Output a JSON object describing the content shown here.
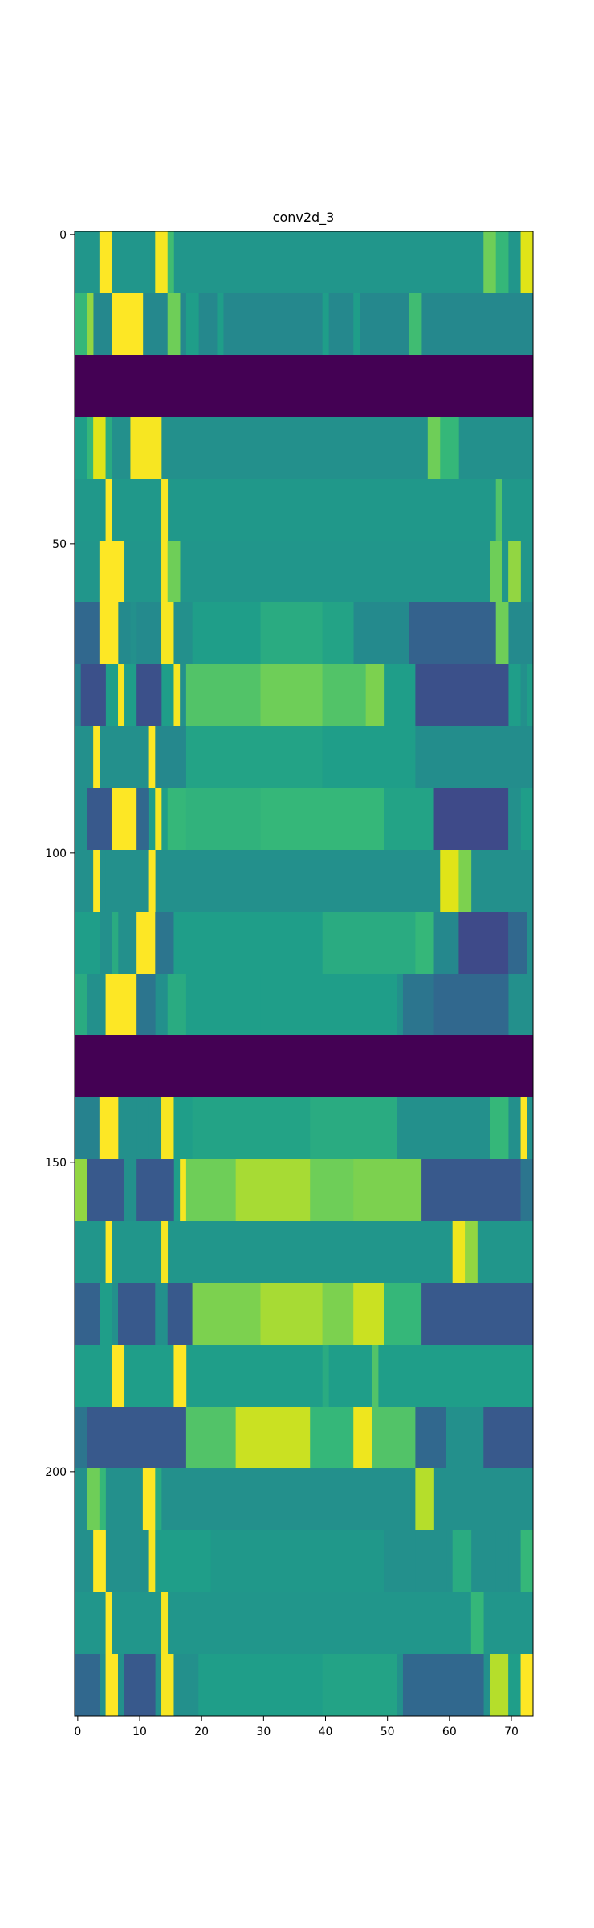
{
  "chart_data": {
    "type": "heatmap",
    "title": "conv2d_3",
    "xlabel": "",
    "ylabel": "",
    "colormap": "viridis",
    "xlim": [
      -0.5,
      73.5
    ],
    "ylim": [
      239.5,
      -0.5
    ],
    "x_ticks": [
      0,
      10,
      20,
      30,
      40,
      50,
      60,
      70
    ],
    "x_tick_labels": [
      "0",
      "10",
      "20",
      "30",
      "40",
      "50",
      "60",
      "70"
    ],
    "y_ticks": [
      0,
      50,
      100,
      150,
      200
    ],
    "y_tick_labels": [
      "0",
      "50",
      "100",
      "150",
      "200"
    ],
    "columns": 74,
    "rows": 240,
    "row_band_height": 10,
    "value_range": [
      0,
      1
    ],
    "bands": [
      {
        "rows": [
          0,
          9
        ],
        "base": 0.47,
        "segments": [
          [
            4,
            6,
            1.0
          ],
          [
            13,
            15,
            0.98
          ],
          [
            15,
            16,
            0.62
          ],
          [
            66,
            68,
            0.7
          ],
          [
            68,
            70,
            0.6
          ],
          [
            72,
            74,
            0.9
          ]
        ]
      },
      {
        "rows": [
          10,
          19
        ],
        "base": 0.42,
        "segments": [
          [
            0,
            2,
            0.6
          ],
          [
            2,
            3,
            0.75
          ],
          [
            6,
            11,
            1.0
          ],
          [
            15,
            17,
            0.7
          ],
          [
            18,
            20,
            0.5
          ],
          [
            23,
            24,
            0.5
          ],
          [
            40,
            41,
            0.5
          ],
          [
            45,
            46,
            0.5
          ],
          [
            54,
            56,
            0.62
          ]
        ]
      },
      {
        "rows": [
          20,
          29
        ],
        "base": 0.0,
        "segments": []
      },
      {
        "rows": [
          30,
          39
        ],
        "base": 0.45,
        "segments": [
          [
            0,
            2,
            0.5
          ],
          [
            2,
            3,
            0.6
          ],
          [
            3,
            5,
            0.9
          ],
          [
            5,
            6,
            0.55
          ],
          [
            9,
            11,
            0.98
          ],
          [
            11,
            14,
            0.98
          ],
          [
            57,
            59,
            0.7
          ],
          [
            59,
            62,
            0.6
          ]
        ]
      },
      {
        "rows": [
          40,
          49
        ],
        "base": 0.48,
        "segments": [
          [
            5,
            6,
            1.0
          ],
          [
            14,
            15,
            0.98
          ],
          [
            68,
            69,
            0.65
          ]
        ]
      },
      {
        "rows": [
          50,
          59
        ],
        "base": 0.47,
        "segments": [
          [
            4,
            8,
            1.0
          ],
          [
            14,
            15,
            0.98
          ],
          [
            15,
            17,
            0.7
          ],
          [
            67,
            69,
            0.7
          ],
          [
            70,
            72,
            0.75
          ]
        ]
      },
      {
        "rows": [
          60,
          69
        ],
        "base": 0.43,
        "segments": [
          [
            0,
            4,
            0.3
          ],
          [
            4,
            7,
            1.0
          ],
          [
            9,
            10,
            0.45
          ],
          [
            14,
            16,
            0.98
          ],
          [
            16,
            19,
            0.45
          ],
          [
            19,
            30,
            0.5
          ],
          [
            30,
            40,
            0.55
          ],
          [
            40,
            45,
            0.52
          ],
          [
            54,
            68,
            0.28
          ],
          [
            68,
            70,
            0.7
          ]
        ]
      },
      {
        "rows": [
          70,
          79
        ],
        "base": 0.5,
        "segments": [
          [
            0,
            1,
            0.4
          ],
          [
            1,
            5,
            0.22
          ],
          [
            7,
            8,
            0.98
          ],
          [
            10,
            14,
            0.22
          ],
          [
            16,
            17,
            0.98
          ],
          [
            17,
            18,
            0.45
          ],
          [
            18,
            30,
            0.65
          ],
          [
            30,
            40,
            0.7
          ],
          [
            40,
            47,
            0.65
          ],
          [
            47,
            50,
            0.72
          ],
          [
            55,
            70,
            0.22
          ],
          [
            72,
            73,
            0.45
          ]
        ]
      },
      {
        "rows": [
          80,
          89
        ],
        "base": 0.45,
        "segments": [
          [
            3,
            4,
            1.0
          ],
          [
            12,
            13,
            1.0
          ],
          [
            13,
            18,
            0.42
          ],
          [
            18,
            40,
            0.52
          ],
          [
            40,
            55,
            0.5
          ],
          [
            55,
            74,
            0.44
          ]
        ]
      },
      {
        "rows": [
          90,
          99
        ],
        "base": 0.5,
        "segments": [
          [
            0,
            2,
            0.45
          ],
          [
            2,
            6,
            0.25
          ],
          [
            6,
            10,
            1.0
          ],
          [
            10,
            12,
            0.3
          ],
          [
            13,
            14,
            0.98
          ],
          [
            15,
            18,
            0.6
          ],
          [
            18,
            30,
            0.58
          ],
          [
            30,
            50,
            0.6
          ],
          [
            50,
            58,
            0.52
          ],
          [
            58,
            70,
            0.2
          ],
          [
            70,
            72,
            0.45
          ]
        ]
      },
      {
        "rows": [
          100,
          109
        ],
        "base": 0.45,
        "segments": [
          [
            3,
            4,
            1.0
          ],
          [
            5,
            6,
            0.45
          ],
          [
            12,
            13,
            1.0
          ],
          [
            59,
            62,
            0.9
          ],
          [
            62,
            64,
            0.72
          ]
        ]
      },
      {
        "rows": [
          110,
          119
        ],
        "base": 0.45,
        "segments": [
          [
            0,
            4,
            0.5
          ],
          [
            6,
            7,
            0.55
          ],
          [
            10,
            13,
            1.0
          ],
          [
            13,
            16,
            0.35
          ],
          [
            16,
            40,
            0.5
          ],
          [
            40,
            55,
            0.55
          ],
          [
            55,
            58,
            0.6
          ],
          [
            58,
            62,
            0.42
          ],
          [
            62,
            70,
            0.2
          ],
          [
            70,
            73,
            0.3
          ]
        ]
      },
      {
        "rows": [
          120,
          129
        ],
        "base": 0.45,
        "segments": [
          [
            0,
            2,
            0.55
          ],
          [
            5,
            10,
            1.0
          ],
          [
            10,
            13,
            0.35
          ],
          [
            15,
            18,
            0.55
          ],
          [
            18,
            30,
            0.5
          ],
          [
            30,
            52,
            0.5
          ],
          [
            53,
            58,
            0.35
          ],
          [
            58,
            70,
            0.3
          ]
        ]
      },
      {
        "rows": [
          130,
          139
        ],
        "base": 0.0,
        "segments": []
      },
      {
        "rows": [
          140,
          149
        ],
        "base": 0.45,
        "segments": [
          [
            0,
            4,
            0.4
          ],
          [
            4,
            7,
            1.0
          ],
          [
            10,
            12,
            0.45
          ],
          [
            14,
            16,
            0.98
          ],
          [
            16,
            19,
            0.5
          ],
          [
            19,
            38,
            0.52
          ],
          [
            38,
            52,
            0.55
          ],
          [
            52,
            67,
            0.45
          ],
          [
            67,
            70,
            0.6
          ],
          [
            72,
            73,
            1.0
          ]
        ]
      },
      {
        "rows": [
          150,
          159
        ],
        "base": 0.5,
        "segments": [
          [
            0,
            2,
            0.75
          ],
          [
            2,
            8,
            0.25
          ],
          [
            8,
            10,
            0.45
          ],
          [
            10,
            16,
            0.25
          ],
          [
            17,
            18,
            0.98
          ],
          [
            18,
            26,
            0.7
          ],
          [
            26,
            38,
            0.78
          ],
          [
            38,
            45,
            0.7
          ],
          [
            45,
            56,
            0.72
          ],
          [
            56,
            72,
            0.25
          ],
          [
            72,
            74,
            0.35
          ]
        ]
      },
      {
        "rows": [
          160,
          169
        ],
        "base": 0.47,
        "segments": [
          [
            5,
            6,
            1.0
          ],
          [
            14,
            15,
            0.98
          ],
          [
            61,
            63,
            0.95
          ],
          [
            63,
            65,
            0.75
          ]
        ]
      },
      {
        "rows": [
          170,
          179
        ],
        "base": 0.5,
        "segments": [
          [
            0,
            4,
            0.28
          ],
          [
            6,
            7,
            0.45
          ],
          [
            7,
            13,
            0.25
          ],
          [
            13,
            15,
            0.45
          ],
          [
            15,
            19,
            0.25
          ],
          [
            19,
            30,
            0.72
          ],
          [
            30,
            40,
            0.78
          ],
          [
            40,
            45,
            0.72
          ],
          [
            45,
            50,
            0.85
          ],
          [
            50,
            56,
            0.6
          ],
          [
            56,
            74,
            0.25
          ]
        ]
      },
      {
        "rows": [
          180,
          189
        ],
        "base": 0.5,
        "segments": [
          [
            6,
            8,
            1.0
          ],
          [
            16,
            18,
            1.0
          ],
          [
            40,
            41,
            0.55
          ],
          [
            48,
            49,
            0.65
          ]
        ]
      },
      {
        "rows": [
          190,
          199
        ],
        "base": 0.5,
        "segments": [
          [
            0,
            2,
            0.35
          ],
          [
            2,
            18,
            0.25
          ],
          [
            18,
            26,
            0.65
          ],
          [
            26,
            38,
            0.85
          ],
          [
            38,
            45,
            0.6
          ],
          [
            45,
            48,
            0.95
          ],
          [
            48,
            55,
            0.65
          ],
          [
            55,
            60,
            0.3
          ],
          [
            60,
            66,
            0.45
          ],
          [
            66,
            74,
            0.25
          ]
        ]
      },
      {
        "rows": [
          200,
          209
        ],
        "base": 0.45,
        "segments": [
          [
            2,
            4,
            0.7
          ],
          [
            4,
            5,
            0.6
          ],
          [
            11,
            13,
            1.0
          ],
          [
            13,
            14,
            0.55
          ],
          [
            55,
            58,
            0.8
          ]
        ]
      },
      {
        "rows": [
          210,
          219
        ],
        "base": 0.45,
        "segments": [
          [
            3,
            5,
            1.0
          ],
          [
            12,
            13,
            0.98
          ],
          [
            13,
            22,
            0.5
          ],
          [
            22,
            50,
            0.48
          ],
          [
            55,
            60,
            0.45
          ],
          [
            61,
            64,
            0.55
          ],
          [
            68,
            70,
            0.45
          ],
          [
            72,
            74,
            0.6
          ]
        ]
      },
      {
        "rows": [
          220,
          229
        ],
        "base": 0.47,
        "segments": [
          [
            5,
            6,
            1.0
          ],
          [
            14,
            15,
            0.98
          ],
          [
            64,
            66,
            0.6
          ]
        ]
      },
      {
        "rows": [
          230,
          239
        ],
        "base": 0.45,
        "segments": [
          [
            0,
            4,
            0.3
          ],
          [
            5,
            7,
            1.0
          ],
          [
            7,
            8,
            0.45
          ],
          [
            8,
            13,
            0.25
          ],
          [
            14,
            16,
            0.98
          ],
          [
            16,
            20,
            0.45
          ],
          [
            20,
            40,
            0.5
          ],
          [
            40,
            52,
            0.52
          ],
          [
            53,
            66,
            0.3
          ],
          [
            67,
            70,
            0.8
          ],
          [
            70,
            72,
            0.5
          ],
          [
            72,
            74,
            1.0
          ]
        ]
      }
    ]
  }
}
